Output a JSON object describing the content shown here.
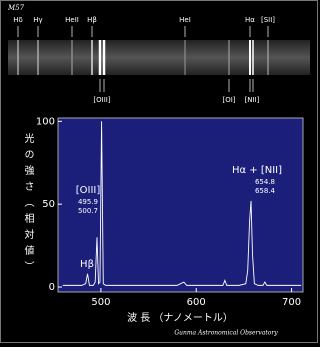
{
  "spectrum": {
    "object": "M57",
    "top_labels": [
      "Hδ",
      "Hγ",
      "HeII",
      "Hβ",
      "HeI",
      "Hα",
      "[SII]"
    ],
    "bottom_labels": [
      "[OIII]",
      "[OI]",
      "[NII]"
    ]
  },
  "chart_data": {
    "type": "line",
    "y_label": "光の強さ（相対値）",
    "x_label": "波 長 （ナノメートル）",
    "credit": "Gunma Astronomical Observatory",
    "annotations": [
      {
        "text": "Hβ"
      },
      {
        "text": "[OIII]",
        "lines": [
          "495.9",
          "500.7"
        ]
      },
      {
        "text": "Hα + [NII]",
        "lines": [
          "654.8",
          "658.4"
        ]
      }
    ],
    "x": [
      460,
      470,
      480,
      484,
      486,
      488,
      492,
      494,
      495.9,
      497.5,
      499,
      500.7,
      502.5,
      505,
      520,
      540,
      560,
      580,
      587,
      590,
      610,
      628,
      630,
      632,
      645,
      652,
      654,
      656,
      657.5,
      659,
      661,
      665,
      670,
      672,
      674,
      690,
      710
    ],
    "series": [
      {
        "color": "#ffffff",
        "values": [
          1,
          1,
          1,
          2,
          8,
          1,
          1,
          3,
          30,
          2,
          3,
          100,
          2,
          1,
          1,
          1,
          1,
          1,
          3,
          1,
          1,
          1,
          4,
          1,
          1,
          2,
          10,
          40,
          52,
          20,
          2,
          1,
          1,
          3,
          1,
          1,
          1
        ]
      }
    ],
    "xlim": [
      455,
      712
    ],
    "xticks": [
      500,
      600,
      700
    ],
    "ylim": [
      -3,
      102
    ],
    "yticks": [
      0,
      50,
      100
    ],
    "background": "#1c1f7a"
  }
}
